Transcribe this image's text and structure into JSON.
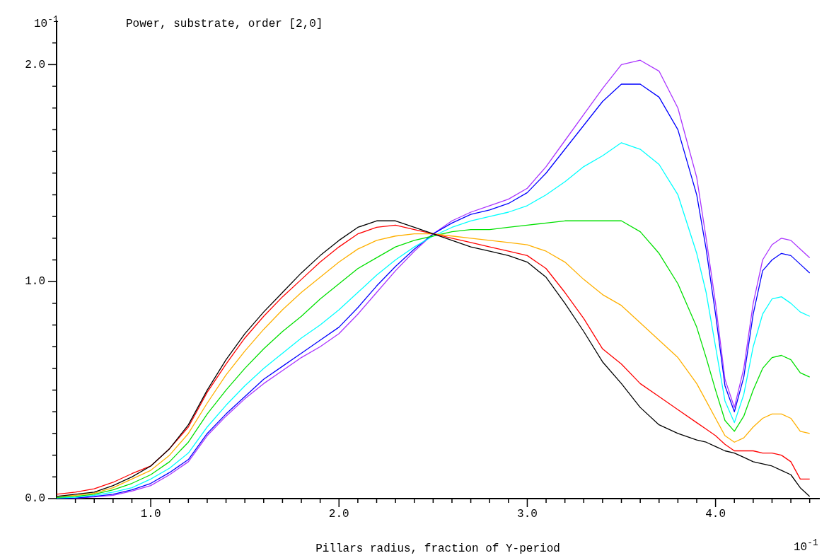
{
  "chart_data": {
    "type": "line",
    "title": "Power, substrate, order [2,0]",
    "xlabel": "Pillars radius, fraction of Y-period",
    "annotations": [
      "10$^{-1}$",
      "10$^{-1}$"
    ],
    "x": [
      0.5,
      0.6,
      0.7,
      0.8,
      0.9,
      1.0,
      1.1,
      1.2,
      1.3,
      1.4,
      1.5,
      1.6,
      1.7,
      1.8,
      1.9,
      2.0,
      2.1,
      2.2,
      2.3,
      2.4,
      2.5,
      2.6,
      2.7,
      2.8,
      2.9,
      3.0,
      3.1,
      3.2,
      3.3,
      3.4,
      3.5,
      3.6,
      3.7,
      3.8,
      3.9,
      3.95,
      4.0,
      4.05,
      4.1,
      4.15,
      4.2,
      4.25,
      4.3,
      4.35,
      4.4,
      4.45,
      4.5
    ],
    "series": [
      {
        "color": "#000000",
        "values": [
          0.01,
          0.02,
          0.03,
          0.06,
          0.1,
          0.15,
          0.23,
          0.34,
          0.5,
          0.64,
          0.76,
          0.86,
          0.95,
          1.04,
          1.12,
          1.19,
          1.25,
          1.28,
          1.28,
          1.25,
          1.22,
          1.19,
          1.16,
          1.14,
          1.12,
          1.09,
          1.02,
          0.9,
          0.77,
          0.63,
          0.53,
          0.42,
          0.34,
          0.3,
          0.27,
          0.26,
          0.24,
          0.22,
          0.21,
          0.19,
          0.17,
          0.16,
          0.15,
          0.13,
          0.11,
          0.05,
          0.01
        ]
      },
      {
        "color": "#ff0000",
        "values": [
          0.02,
          0.03,
          0.045,
          0.075,
          0.115,
          0.15,
          0.23,
          0.33,
          0.49,
          0.62,
          0.74,
          0.84,
          0.93,
          1.01,
          1.09,
          1.16,
          1.22,
          1.25,
          1.26,
          1.24,
          1.22,
          1.2,
          1.18,
          1.16,
          1.14,
          1.12,
          1.06,
          0.95,
          0.83,
          0.69,
          0.62,
          0.53,
          0.47,
          0.41,
          0.35,
          0.32,
          0.29,
          0.25,
          0.22,
          0.22,
          0.22,
          0.21,
          0.21,
          0.2,
          0.17,
          0.09,
          0.09
        ]
      },
      {
        "color": "#ffb000",
        "values": [
          0.01,
          0.015,
          0.025,
          0.05,
          0.09,
          0.13,
          0.2,
          0.3,
          0.44,
          0.57,
          0.68,
          0.78,
          0.87,
          0.95,
          1.02,
          1.09,
          1.15,
          1.19,
          1.21,
          1.22,
          1.22,
          1.21,
          1.2,
          1.19,
          1.18,
          1.17,
          1.14,
          1.09,
          1.01,
          0.94,
          0.89,
          0.81,
          0.73,
          0.65,
          0.53,
          0.45,
          0.37,
          0.29,
          0.26,
          0.28,
          0.33,
          0.37,
          0.39,
          0.39,
          0.37,
          0.31,
          0.3
        ]
      },
      {
        "color": "#00e000",
        "values": [
          0.005,
          0.01,
          0.02,
          0.04,
          0.07,
          0.11,
          0.17,
          0.26,
          0.39,
          0.5,
          0.6,
          0.69,
          0.77,
          0.84,
          0.92,
          0.99,
          1.06,
          1.11,
          1.16,
          1.19,
          1.21,
          1.23,
          1.24,
          1.24,
          1.25,
          1.26,
          1.27,
          1.28,
          1.28,
          1.28,
          1.28,
          1.23,
          1.13,
          0.99,
          0.79,
          0.65,
          0.5,
          0.36,
          0.31,
          0.38,
          0.5,
          0.6,
          0.65,
          0.66,
          0.64,
          0.58,
          0.56
        ]
      },
      {
        "color": "#00ffff",
        "values": [
          0.003,
          0.006,
          0.015,
          0.03,
          0.05,
          0.09,
          0.14,
          0.21,
          0.33,
          0.43,
          0.52,
          0.6,
          0.67,
          0.74,
          0.8,
          0.87,
          0.95,
          1.03,
          1.1,
          1.16,
          1.21,
          1.25,
          1.28,
          1.3,
          1.32,
          1.35,
          1.4,
          1.46,
          1.53,
          1.58,
          1.64,
          1.61,
          1.54,
          1.4,
          1.13,
          0.95,
          0.7,
          0.45,
          0.35,
          0.48,
          0.7,
          0.85,
          0.92,
          0.93,
          0.9,
          0.86,
          0.84
        ]
      },
      {
        "color": "#0000ff",
        "values": [
          0,
          0.003,
          0.01,
          0.02,
          0.04,
          0.07,
          0.12,
          0.18,
          0.3,
          0.39,
          0.47,
          0.55,
          0.61,
          0.67,
          0.73,
          0.79,
          0.88,
          0.98,
          1.07,
          1.15,
          1.22,
          1.27,
          1.31,
          1.33,
          1.36,
          1.41,
          1.5,
          1.61,
          1.72,
          1.83,
          1.91,
          1.91,
          1.85,
          1.7,
          1.4,
          1.15,
          0.85,
          0.52,
          0.4,
          0.56,
          0.85,
          1.05,
          1.1,
          1.13,
          1.12,
          1.08,
          1.04
        ]
      },
      {
        "color": "#aa33ff",
        "values": [
          0,
          0.002,
          0.008,
          0.015,
          0.035,
          0.06,
          0.11,
          0.17,
          0.29,
          0.38,
          0.46,
          0.53,
          0.59,
          0.65,
          0.7,
          0.76,
          0.85,
          0.95,
          1.05,
          1.14,
          1.22,
          1.28,
          1.32,
          1.35,
          1.38,
          1.43,
          1.53,
          1.65,
          1.77,
          1.89,
          2.0,
          2.02,
          1.97,
          1.8,
          1.48,
          1.2,
          0.9,
          0.55,
          0.42,
          0.6,
          0.9,
          1.1,
          1.17,
          1.2,
          1.19,
          1.15,
          1.11
        ]
      }
    ],
    "xlim": [
      0.5,
      4.55
    ],
    "ylim": [
      0,
      2.2
    ],
    "xticks": [
      {
        "value": 0.6,
        "label": null
      },
      {
        "value": 0.7,
        "label": null
      },
      {
        "value": 0.8,
        "label": null
      },
      {
        "value": 0.9,
        "label": null
      },
      {
        "value": 1.0,
        "label": "1.0"
      },
      {
        "value": 1.1,
        "label": null
      },
      {
        "value": 1.2,
        "label": null
      },
      {
        "value": 1.3,
        "label": null
      },
      {
        "value": 1.4,
        "label": null
      },
      {
        "value": 1.5,
        "label": null
      },
      {
        "value": 1.6,
        "label": null
      },
      {
        "value": 1.7,
        "label": null
      },
      {
        "value": 1.8,
        "label": null
      },
      {
        "value": 1.9,
        "label": null
      },
      {
        "value": 2.0,
        "label": "2.0"
      },
      {
        "value": 2.1,
        "label": null
      },
      {
        "value": 2.2,
        "label": null
      },
      {
        "value": 2.3,
        "label": null
      },
      {
        "value": 2.4,
        "label": null
      },
      {
        "value": 2.5,
        "label": null
      },
      {
        "value": 2.6,
        "label": null
      },
      {
        "value": 2.7,
        "label": null
      },
      {
        "value": 2.8,
        "label": null
      },
      {
        "value": 2.9,
        "label": null
      },
      {
        "value": 3.0,
        "label": "3.0"
      },
      {
        "value": 3.1,
        "label": null
      },
      {
        "value": 3.2,
        "label": null
      },
      {
        "value": 3.3,
        "label": null
      },
      {
        "value": 3.4,
        "label": null
      },
      {
        "value": 3.5,
        "label": null
      },
      {
        "value": 3.6,
        "label": null
      },
      {
        "value": 3.7,
        "label": null
      },
      {
        "value": 3.8,
        "label": null
      },
      {
        "value": 3.9,
        "label": null
      },
      {
        "value": 4.0,
        "label": "4.0"
      },
      {
        "value": 4.1,
        "label": null
      },
      {
        "value": 4.2,
        "label": null
      },
      {
        "value": 4.3,
        "label": null
      },
      {
        "value": 4.4,
        "label": null
      },
      {
        "value": 4.5,
        "label": null
      }
    ],
    "yticks": [
      {
        "value": 0,
        "label": "0.0"
      },
      {
        "value": 0.1,
        "label": null
      },
      {
        "value": 0.2,
        "label": null
      },
      {
        "value": 0.3,
        "label": null
      },
      {
        "value": 0.4,
        "label": null
      },
      {
        "value": 0.5,
        "label": null
      },
      {
        "value": 0.6,
        "label": null
      },
      {
        "value": 0.7,
        "label": null
      },
      {
        "value": 0.8,
        "label": null
      },
      {
        "value": 0.9,
        "label": null
      },
      {
        "value": 1.0,
        "label": "1.0"
      },
      {
        "value": 1.1,
        "label": null
      },
      {
        "value": 1.2,
        "label": null
      },
      {
        "value": 1.3,
        "label": null
      },
      {
        "value": 1.4,
        "label": null
      },
      {
        "value": 1.5,
        "label": null
      },
      {
        "value": 1.6,
        "label": null
      },
      {
        "value": 1.7,
        "label": null
      },
      {
        "value": 1.8,
        "label": null
      },
      {
        "value": 1.9,
        "label": null
      },
      {
        "value": 2.0,
        "label": "2.0"
      },
      {
        "value": 2.1,
        "label": null
      }
    ],
    "grid": false,
    "legend": false,
    "marker": "none",
    "line_style": "solid"
  }
}
